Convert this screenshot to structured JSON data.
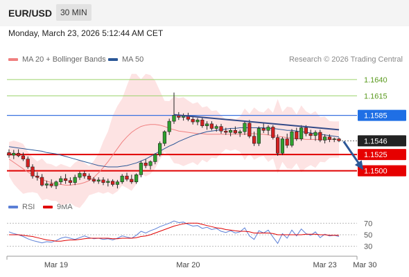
{
  "header": {
    "pair": "EUR/USD",
    "timeframe": "30 MIN"
  },
  "datetime": "Monday, March 23, 2026 5:12:44 AM CET",
  "legend": {
    "ma20": {
      "label": "MA 20 + Bollinger Bands",
      "color": "#f08080"
    },
    "ma50": {
      "label": "MA 50",
      "color": "#2b5797"
    },
    "rsi": {
      "label": "RSI",
      "color": "#5b7fd6"
    },
    "rsi_ma": {
      "label": "9MA",
      "color": "#e00000"
    }
  },
  "credit": "Research © 2026 Trading Central",
  "chart_data": [
    {
      "type": "candlestick",
      "ylim": [
        1.1472,
        1.166
      ],
      "x_ticks": [
        {
          "label": "Mar 19",
          "index": 10
        },
        {
          "label": "Mar 20",
          "index": 38
        },
        {
          "label": "Mar 23",
          "index": 67
        },
        {
          "label": "Mar 30",
          "index": 75.5
        }
      ],
      "levels": [
        {
          "value": 1.164,
          "label": "1.1640",
          "style": "target"
        },
        {
          "value": 1.1615,
          "label": "1.1615",
          "style": "target"
        },
        {
          "value": 1.1585,
          "label": "1.1585",
          "style": "pivot"
        },
        {
          "value": 1.1546,
          "label": "1.1546",
          "style": "last"
        },
        {
          "value": 1.1525,
          "label": "1.1525",
          "style": "support"
        },
        {
          "value": 1.15,
          "label": "1.1500",
          "style": "support"
        }
      ],
      "trendline": {
        "from": [
          35,
          1.1586
        ],
        "to": [
          70,
          1.1563
        ]
      },
      "forecast_arrow": {
        "from": [
          71,
          1.1545
        ],
        "to": [
          75,
          1.1503
        ]
      },
      "series": [
        {
          "name": "MA 20 + Bollinger Bands",
          "values": [
            1.1518,
            1.1513,
            1.1508,
            1.1503,
            1.1498,
            1.1494,
            1.149,
            1.1487,
            1.1484,
            1.1482,
            1.148,
            1.1479,
            1.1478,
            1.1478,
            1.1479,
            1.148,
            1.1482,
            1.1485,
            1.149,
            1.1497,
            1.1505,
            1.1514,
            1.1524,
            1.1534,
            1.1544,
            1.1552,
            1.1559,
            1.1564,
            1.1568,
            1.157,
            1.1571,
            1.1571,
            1.157,
            1.1568,
            1.1565,
            1.1563,
            1.1561,
            1.156,
            1.1559,
            1.1558,
            1.1557,
            1.1557,
            1.1556,
            1.1556,
            1.1556,
            1.1556,
            1.1556,
            1.1556,
            1.1556,
            1.1556,
            1.1556,
            1.1557,
            1.1557,
            1.1556,
            1.1556,
            1.1555,
            1.1554,
            1.1553,
            1.1552,
            1.1551,
            1.155,
            1.1549,
            1.1549,
            1.1548,
            1.1548,
            1.1548,
            1.1548,
            1.1548,
            1.1548,
            1.1548,
            1.1548
          ]
        },
        {
          "name": "MA 50",
          "values": [
            1.1537,
            1.1536,
            1.1535,
            1.1534,
            1.1533,
            1.1532,
            1.1531,
            1.153,
            1.1528,
            1.1527,
            1.1526,
            1.1524,
            1.1522,
            1.152,
            1.1518,
            1.1516,
            1.1514,
            1.1512,
            1.151,
            1.1508,
            1.1507,
            1.1506,
            1.1506,
            1.1506,
            1.1507,
            1.1508,
            1.151,
            1.1512,
            1.1515,
            1.1518,
            1.1522,
            1.1526,
            1.153,
            1.1534,
            1.1538,
            1.1541,
            1.1545,
            1.1548,
            1.1551,
            1.1554,
            1.1556,
            1.1558,
            1.156,
            1.1561,
            1.1562,
            1.1563,
            1.1564,
            1.1565,
            1.1565,
            1.1566,
            1.1566,
            1.1566,
            1.1566,
            1.1566,
            1.1566,
            1.1565,
            1.1565,
            1.1564,
            1.1563,
            1.1562,
            1.1562,
            1.1561,
            1.156,
            1.1559,
            1.1558,
            1.1557,
            1.1556,
            1.1555,
            1.1554,
            1.1553,
            1.1552
          ]
        }
      ],
      "ohlc": [
        [
          1.1528,
          1.1533,
          1.152,
          1.1524
        ],
        [
          1.1524,
          1.1532,
          1.1518,
          1.1527
        ],
        [
          1.1527,
          1.1533,
          1.1521,
          1.1523
        ],
        [
          1.1523,
          1.1528,
          1.1515,
          1.1518
        ],
        [
          1.1518,
          1.1522,
          1.1503,
          1.1506
        ],
        [
          1.1506,
          1.151,
          1.1488,
          1.1492
        ],
        [
          1.1492,
          1.1498,
          1.1485,
          1.149
        ],
        [
          1.149,
          1.1495,
          1.1476,
          1.1478
        ],
        [
          1.1478,
          1.1485,
          1.1473,
          1.148
        ],
        [
          1.148,
          1.1487,
          1.1474,
          1.1477
        ],
        [
          1.1477,
          1.1485,
          1.1472,
          1.1483
        ],
        [
          1.1483,
          1.1492,
          1.1479,
          1.1488
        ],
        [
          1.1488,
          1.1495,
          1.148,
          1.1485
        ],
        [
          1.1485,
          1.149,
          1.1478,
          1.1482
        ],
        [
          1.1482,
          1.1494,
          1.1478,
          1.149
        ],
        [
          1.149,
          1.1499,
          1.1486,
          1.1496
        ],
        [
          1.1496,
          1.15,
          1.1488,
          1.1492
        ],
        [
          1.1492,
          1.1496,
          1.1485,
          1.1487
        ],
        [
          1.1487,
          1.149,
          1.1481,
          1.1484
        ],
        [
          1.1484,
          1.149,
          1.148,
          1.1486
        ],
        [
          1.1486,
          1.149,
          1.1478,
          1.1482
        ],
        [
          1.1482,
          1.1488,
          1.1476,
          1.1484
        ],
        [
          1.1484,
          1.1487,
          1.1476,
          1.1479
        ],
        [
          1.1479,
          1.1486,
          1.1473,
          1.1483
        ],
        [
          1.1483,
          1.1495,
          1.148,
          1.1492
        ],
        [
          1.1492,
          1.1497,
          1.1484,
          1.1487
        ],
        [
          1.1487,
          1.1494,
          1.148,
          1.1483
        ],
        [
          1.1483,
          1.1496,
          1.148,
          1.1494
        ],
        [
          1.1494,
          1.1515,
          1.149,
          1.1512
        ],
        [
          1.1512,
          1.1518,
          1.1504,
          1.1508
        ],
        [
          1.1508,
          1.1516,
          1.1502,
          1.1514
        ],
        [
          1.1514,
          1.1527,
          1.151,
          1.1525
        ],
        [
          1.1525,
          1.1545,
          1.1522,
          1.1542
        ],
        [
          1.1542,
          1.1562,
          1.1538,
          1.156
        ],
        [
          1.156,
          1.158,
          1.1555,
          1.1576
        ],
        [
          1.1576,
          1.162,
          1.1572,
          1.1585
        ],
        [
          1.1585,
          1.159,
          1.1578,
          1.1582
        ],
        [
          1.1582,
          1.1588,
          1.1577,
          1.1584
        ],
        [
          1.1584,
          1.1589,
          1.1576,
          1.1579
        ],
        [
          1.1579,
          1.1583,
          1.1571,
          1.1575
        ],
        [
          1.1575,
          1.1581,
          1.157,
          1.1578
        ],
        [
          1.1578,
          1.1582,
          1.1566,
          1.1569
        ],
        [
          1.1569,
          1.1576,
          1.1563,
          1.1572
        ],
        [
          1.1572,
          1.1576,
          1.1562,
          1.1565
        ],
        [
          1.1565,
          1.1571,
          1.156,
          1.1568
        ],
        [
          1.1568,
          1.1572,
          1.1557,
          1.1561
        ],
        [
          1.1561,
          1.1566,
          1.1555,
          1.1559
        ],
        [
          1.1559,
          1.1565,
          1.1553,
          1.1562
        ],
        [
          1.1562,
          1.1568,
          1.1556,
          1.1558
        ],
        [
          1.1558,
          1.1563,
          1.1552,
          1.156
        ],
        [
          1.156,
          1.1577,
          1.1555,
          1.1573
        ],
        [
          1.1573,
          1.1578,
          1.155,
          1.1553
        ],
        [
          1.1553,
          1.156,
          1.1538,
          1.1542
        ],
        [
          1.1542,
          1.1568,
          1.1538,
          1.1565
        ],
        [
          1.1565,
          1.1574,
          1.1558,
          1.1562
        ],
        [
          1.1562,
          1.157,
          1.1555,
          1.1567
        ],
        [
          1.1567,
          1.157,
          1.1548,
          1.1551
        ],
        [
          1.1551,
          1.1556,
          1.1523,
          1.1527
        ],
        [
          1.1527,
          1.1552,
          1.1524,
          1.1549
        ],
        [
          1.1549,
          1.1557,
          1.1535,
          1.1539
        ],
        [
          1.1539,
          1.1564,
          1.1536,
          1.156
        ],
        [
          1.156,
          1.1566,
          1.1546,
          1.1549
        ],
        [
          1.1549,
          1.157,
          1.1546,
          1.1566
        ],
        [
          1.1566,
          1.157,
          1.1553,
          1.1557
        ],
        [
          1.1557,
          1.1563,
          1.1548,
          1.1554
        ],
        [
          1.1554,
          1.1562,
          1.1546,
          1.1559
        ],
        [
          1.1559,
          1.1563,
          1.1544,
          1.1547
        ],
        [
          1.1547,
          1.1556,
          1.1542,
          1.1552
        ],
        [
          1.1552,
          1.1556,
          1.1544,
          1.1548
        ],
        [
          1.1548,
          1.1551,
          1.1544,
          1.1549
        ],
        [
          1.1549,
          1.1551,
          1.1544,
          1.1546
        ]
      ]
    },
    {
      "type": "line",
      "ylim": [
        20,
        80
      ],
      "y_ticks": [
        70,
        50,
        30
      ],
      "series": [
        {
          "name": "RSI",
          "values": [
            55,
            52,
            50,
            47,
            43,
            40,
            38,
            36,
            38,
            37,
            40,
            44,
            46,
            44,
            42,
            45,
            48,
            45,
            43,
            44,
            42,
            43,
            41,
            44,
            48,
            46,
            44,
            49,
            56,
            53,
            57,
            60,
            64,
            67,
            70,
            74,
            71,
            72,
            68,
            65,
            66,
            61,
            63,
            59,
            61,
            56,
            54,
            57,
            53,
            55,
            62,
            48,
            42,
            57,
            53,
            58,
            46,
            35,
            52,
            44,
            58,
            48,
            60,
            52,
            49,
            55,
            45,
            51,
            48,
            49,
            47
          ]
        },
        {
          "name": "9MA",
          "values": [
            50,
            50,
            50,
            49,
            48,
            47,
            45,
            43,
            41,
            40,
            39,
            39,
            40,
            41,
            41,
            42,
            43,
            44,
            44,
            44,
            44,
            44,
            43,
            43,
            44,
            44,
            44,
            45,
            47,
            48,
            50,
            53,
            56,
            59,
            62,
            65,
            67,
            69,
            70,
            70,
            70,
            68,
            66,
            64,
            62,
            61,
            59,
            58,
            57,
            56,
            56,
            55,
            53,
            53,
            53,
            53,
            52,
            50,
            50,
            50,
            50,
            50,
            50,
            51,
            51,
            51,
            50,
            50,
            49,
            49,
            49
          ]
        }
      ]
    }
  ]
}
